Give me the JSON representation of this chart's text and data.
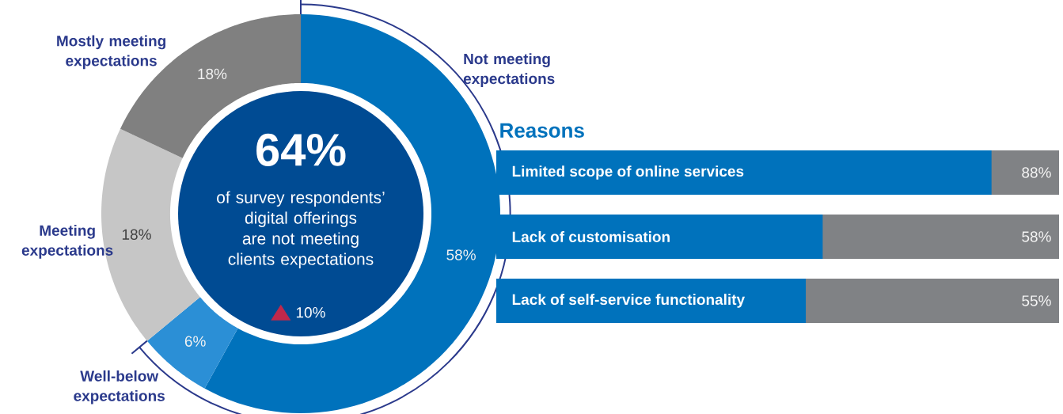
{
  "chart_data": [
    {
      "type": "donut",
      "categories": [
        "Not meeting expectations",
        "Well-below expectations",
        "Meeting expectations",
        "Mostly meeting expectations"
      ],
      "values": [
        58,
        6,
        18,
        18
      ],
      "colors": [
        "#0072bc",
        "#2b8fd6",
        "#c6c6c6",
        "#808080"
      ],
      "value_labels": [
        "58%",
        "6%",
        "18%",
        "18%"
      ],
      "annotations": [
        "64%",
        "of survey respondents’ digital offerings are not meeting clients expectations",
        "10%"
      ]
    },
    {
      "type": "bar",
      "title": "Reasons",
      "orientation": "horizontal",
      "categories": [
        "Limited scope of online services",
        "Lack of customisation",
        "Lack of self-service functionality"
      ],
      "xlim": [
        0,
        100
      ],
      "series": [
        {
          "color": "#0072bc",
          "values": [
            88,
            58,
            55
          ],
          "value_labels": [
            "88%",
            "58%",
            "55%"
          ]
        }
      ]
    }
  ]
}
